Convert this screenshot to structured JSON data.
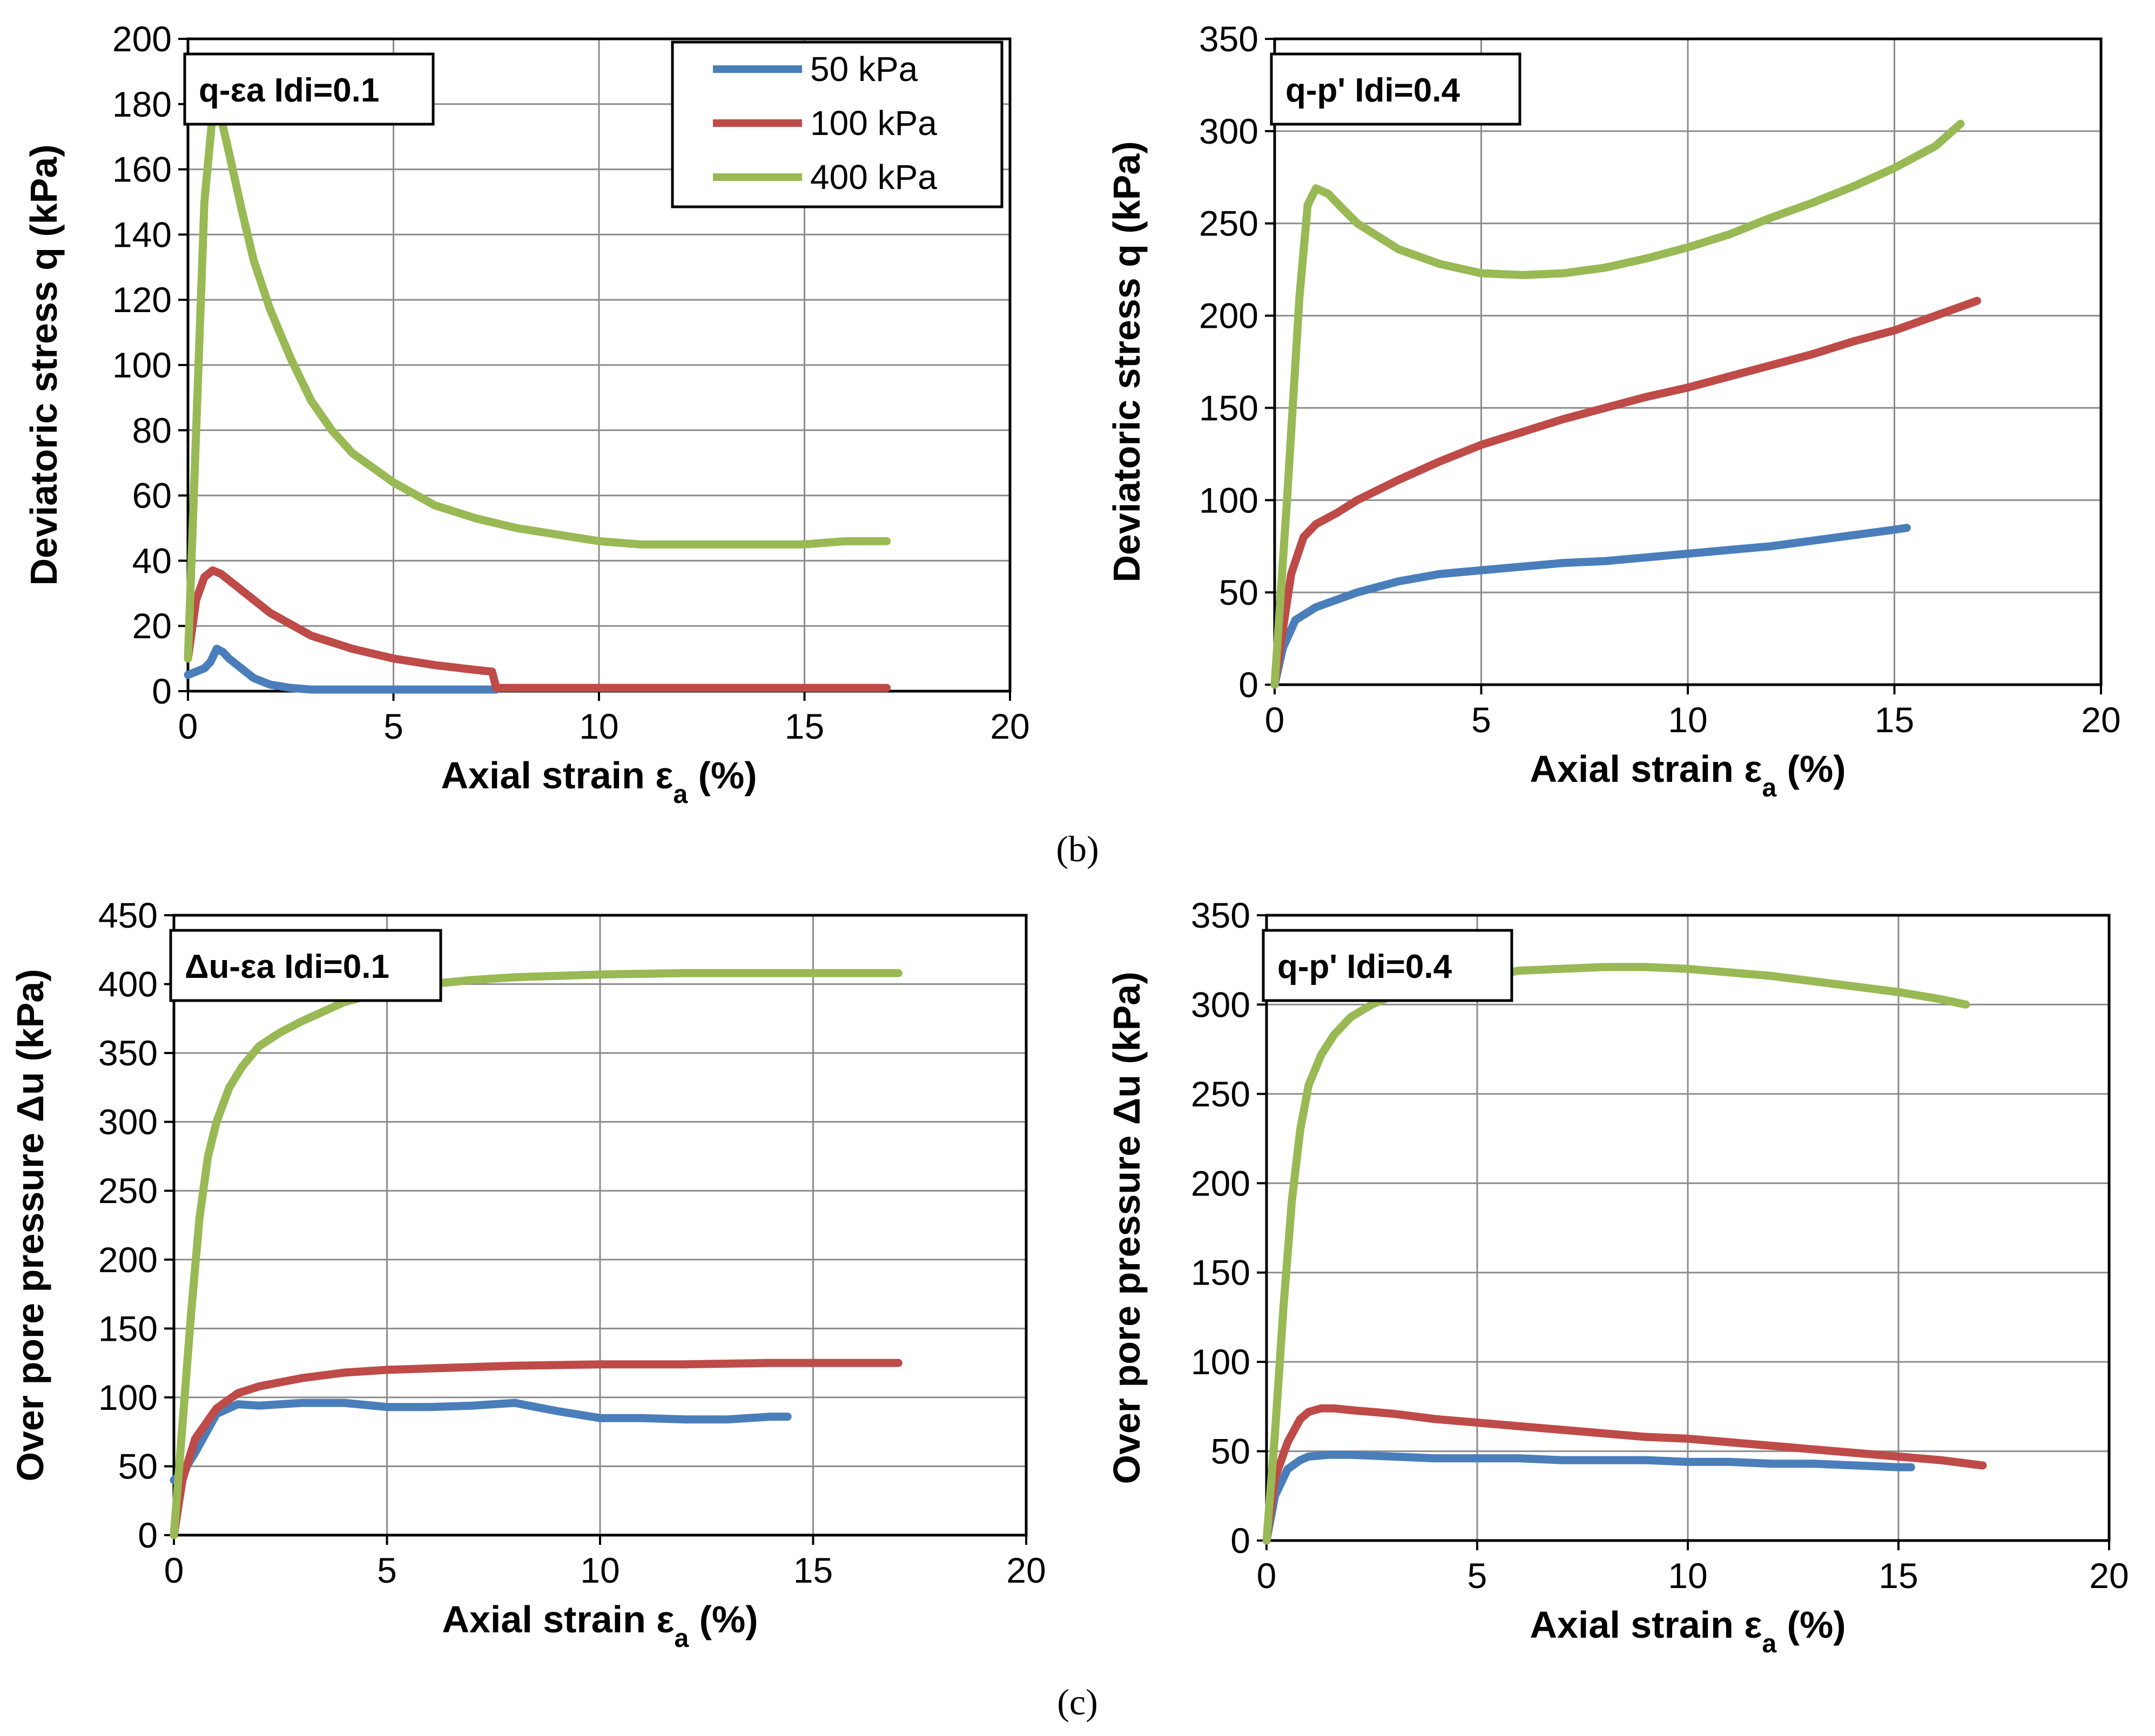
{
  "captions": {
    "b": "(b)",
    "c": "(c)"
  },
  "legend": {
    "entries": [
      {
        "label": "50 kPa",
        "color": "#4a7ebb"
      },
      {
        "label": "100 kPa",
        "color": "#be4b48"
      },
      {
        "label": "400 kPa",
        "color": "#98b954"
      }
    ]
  },
  "chart_data": [
    {
      "type": "line",
      "box_label": "q-εa Idi=0.1",
      "xlabel": "Axial strain εa (%)",
      "ylabel": "Deviatoric stress q (kPa)",
      "xlim": [
        0,
        20
      ],
      "ylim": [
        0,
        200
      ],
      "xticks": [
        "0",
        "5",
        "10",
        "15",
        "20"
      ],
      "yticks": [
        "0",
        "20",
        "40",
        "60",
        "80",
        "100",
        "120",
        "140",
        "160",
        "180",
        "200"
      ],
      "grid": true,
      "legend": "top-right",
      "series": [
        {
          "name": "50 kPa",
          "color": "#4a7ebb",
          "x": [
            0,
            0.2,
            0.4,
            0.55,
            0.7,
            0.85,
            1.0,
            1.3,
            1.6,
            2.0,
            2.5,
            3.0,
            4.0,
            5.0,
            6.0,
            7.0,
            7.5
          ],
          "y": [
            5,
            6,
            7,
            9,
            13,
            12,
            10,
            7,
            4,
            2,
            1,
            0.5,
            0.5,
            0.5,
            0.5,
            0.5,
            0.5
          ]
        },
        {
          "name": "100 kPa",
          "color": "#be4b48",
          "x": [
            0,
            0.2,
            0.4,
            0.6,
            0.8,
            1.0,
            1.5,
            2.0,
            3.0,
            4.0,
            5.0,
            6.0,
            7.0,
            7.4,
            7.5,
            8.0,
            10.0,
            12.0,
            14.0,
            16.0,
            17.0
          ],
          "y": [
            10,
            28,
            35,
            37,
            36,
            34,
            29,
            24,
            17,
            13,
            10,
            8,
            6.5,
            6,
            1,
            1,
            1,
            1,
            1,
            1,
            1
          ]
        },
        {
          "name": "400 kPa",
          "color": "#98b954",
          "x": [
            0,
            0.2,
            0.4,
            0.6,
            0.8,
            1.0,
            1.3,
            1.6,
            2.0,
            2.5,
            3.0,
            3.5,
            4.0,
            5.0,
            6.0,
            7.0,
            8.0,
            9.0,
            10.0,
            11.0,
            12.0,
            13.0,
            14.0,
            15.0,
            16.0,
            17.0
          ],
          "y": [
            10,
            80,
            150,
            177,
            176,
            165,
            148,
            132,
            117,
            102,
            89,
            80,
            73,
            64,
            57,
            53,
            50,
            48,
            46,
            45,
            45,
            45,
            45,
            45,
            46,
            46
          ]
        }
      ]
    },
    {
      "type": "line",
      "box_label": "q-p' Idi=0.4",
      "xlabel": "Axial strain εa (%)",
      "ylabel": "Deviatoric stress q (kPa)",
      "xlim": [
        0,
        20
      ],
      "ylim": [
        0,
        350
      ],
      "xticks": [
        "0",
        "5",
        "10",
        "15",
        "20"
      ],
      "yticks": [
        "0",
        "50",
        "100",
        "150",
        "200",
        "250",
        "300",
        "350"
      ],
      "grid": true,
      "series": [
        {
          "name": "50 kPa",
          "color": "#4a7ebb",
          "x": [
            0,
            0.2,
            0.5,
            1.0,
            2.0,
            3.0,
            4.0,
            5.0,
            6.0,
            7.0,
            8.0,
            9.0,
            10.0,
            11.0,
            12.0,
            13.0,
            14.0,
            15.0,
            15.3
          ],
          "y": [
            0,
            20,
            35,
            42,
            50,
            56,
            60,
            62,
            64,
            66,
            67,
            69,
            71,
            73,
            75,
            78,
            81,
            84,
            85
          ]
        },
        {
          "name": "100 kPa",
          "color": "#be4b48",
          "x": [
            0,
            0.2,
            0.4,
            0.7,
            1.0,
            1.5,
            2.0,
            3.0,
            4.0,
            5.0,
            6.0,
            7.0,
            8.0,
            9.0,
            10.0,
            11.0,
            12.0,
            13.0,
            14.0,
            15.0,
            16.0,
            17.0
          ],
          "y": [
            0,
            30,
            60,
            80,
            87,
            93,
            100,
            111,
            121,
            130,
            137,
            144,
            150,
            156,
            161,
            167,
            173,
            179,
            186,
            192,
            200,
            208
          ]
        },
        {
          "name": "400 kPa",
          "color": "#98b954",
          "x": [
            0,
            0.3,
            0.6,
            0.8,
            1.0,
            1.3,
            1.6,
            2.0,
            3.0,
            4.0,
            5.0,
            6.0,
            7.0,
            8.0,
            9.0,
            10.0,
            11.0,
            12.0,
            13.0,
            14.0,
            15.0,
            16.0,
            16.6
          ],
          "y": [
            0,
            100,
            210,
            260,
            269,
            266,
            259,
            250,
            236,
            228,
            223,
            222,
            223,
            226,
            231,
            237,
            244,
            253,
            261,
            270,
            280,
            292,
            304
          ]
        }
      ]
    },
    {
      "type": "line",
      "box_label": "Δu-εa Idi=0.1",
      "xlabel": "Axial strain εa (%)",
      "ylabel": "Over pore pressure Δu (kPa)",
      "xlim": [
        0,
        20
      ],
      "ylim": [
        0,
        450
      ],
      "xticks": [
        "0",
        "5",
        "10",
        "15",
        "20"
      ],
      "yticks": [
        "0",
        "50",
        "100",
        "150",
        "200",
        "250",
        "300",
        "350",
        "400",
        "450"
      ],
      "grid": true,
      "series": [
        {
          "name": "50 kPa",
          "color": "#4a7ebb",
          "x": [
            0,
            0.2,
            0.5,
            1.0,
            1.5,
            2.0,
            3.0,
            4.0,
            5.0,
            6.0,
            7.0,
            8.0,
            9.0,
            10.0,
            11.0,
            12.0,
            13.0,
            14.0,
            14.4
          ],
          "y": [
            40,
            45,
            60,
            88,
            95,
            94,
            96,
            96,
            93,
            93,
            94,
            96,
            90,
            85,
            85,
            84,
            84,
            86,
            86
          ]
        },
        {
          "name": "100 kPa",
          "color": "#be4b48",
          "x": [
            0,
            0.2,
            0.5,
            1.0,
            1.5,
            2.0,
            3.0,
            4.0,
            5.0,
            6.0,
            7.0,
            8.0,
            10.0,
            12.0,
            14.0,
            16.0,
            17.0
          ],
          "y": [
            0,
            40,
            70,
            92,
            103,
            108,
            114,
            118,
            120,
            121,
            122,
            123,
            124,
            124,
            125,
            125,
            125
          ]
        },
        {
          "name": "400 kPa",
          "color": "#98b954",
          "x": [
            0,
            0.2,
            0.4,
            0.6,
            0.8,
            1.0,
            1.3,
            1.6,
            2.0,
            2.5,
            3.0,
            3.5,
            4.0,
            5.0,
            6.0,
            7.0,
            8.0,
            10.0,
            12.0,
            14.0,
            16.0,
            17.0
          ],
          "y": [
            0,
            80,
            160,
            230,
            275,
            300,
            325,
            340,
            355,
            365,
            373,
            380,
            387,
            395,
            400,
            403,
            405,
            407,
            408,
            408,
            408,
            408
          ]
        }
      ]
    },
    {
      "type": "line",
      "box_label": "q-p' Idi=0.4",
      "xlabel": "Axial strain εa (%)",
      "ylabel": "Over pore pressure Δu  (kPa)",
      "xlim": [
        0,
        20
      ],
      "ylim": [
        0,
        350
      ],
      "xticks": [
        "0",
        "5",
        "10",
        "15",
        "20"
      ],
      "yticks": [
        "0",
        "50",
        "100",
        "150",
        "200",
        "250",
        "300",
        "350"
      ],
      "grid": true,
      "series": [
        {
          "name": "50 kPa",
          "color": "#4a7ebb",
          "x": [
            0,
            0.2,
            0.5,
            0.8,
            1.0,
            1.5,
            2.0,
            3.0,
            4.0,
            5.0,
            6.0,
            7.0,
            8.0,
            9.0,
            10.0,
            11.0,
            12.0,
            13.0,
            14.0,
            15.0,
            15.3
          ],
          "y": [
            0,
            25,
            40,
            45,
            47,
            48,
            48,
            47,
            46,
            46,
            46,
            45,
            45,
            45,
            44,
            44,
            43,
            43,
            42,
            41,
            41
          ]
        },
        {
          "name": "100 kPa",
          "color": "#be4b48",
          "x": [
            0,
            0.2,
            0.5,
            0.8,
            1.0,
            1.3,
            1.6,
            2.0,
            3.0,
            4.0,
            5.0,
            6.0,
            7.0,
            8.0,
            9.0,
            10.0,
            11.0,
            12.0,
            13.0,
            14.0,
            15.0,
            16.0,
            17.0
          ],
          "y": [
            0,
            35,
            55,
            68,
            72,
            74,
            74,
            73,
            71,
            68,
            66,
            64,
            62,
            60,
            58,
            57,
            55,
            53,
            51,
            49,
            47,
            45,
            42
          ]
        },
        {
          "name": "400 kPa",
          "color": "#98b954",
          "x": [
            0,
            0.2,
            0.4,
            0.6,
            0.8,
            1.0,
            1.3,
            1.6,
            2.0,
            2.5,
            3.0,
            4.0,
            5.0,
            6.0,
            7.0,
            8.0,
            9.0,
            10.0,
            11.0,
            12.0,
            13.0,
            14.0,
            15.0,
            16.0,
            16.6
          ],
          "y": [
            0,
            60,
            130,
            190,
            230,
            255,
            272,
            283,
            293,
            300,
            305,
            311,
            315,
            319,
            320,
            321,
            321,
            320,
            318,
            316,
            313,
            310,
            307,
            303,
            300
          ]
        }
      ]
    }
  ]
}
